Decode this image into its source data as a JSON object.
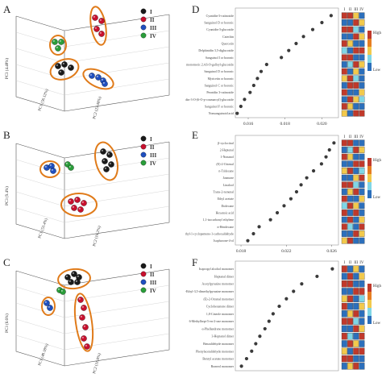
{
  "panels": {
    "A": {
      "letter": "A",
      "axes": {
        "x": "PC1 (56.12%)",
        "y": "PC2 (23.48%)",
        "z": "PC3 (4.48%)"
      },
      "legend": [
        "I",
        "II",
        "III",
        "IV"
      ]
    },
    "B": {
      "letter": "B",
      "axes": {
        "x": "PC1 (53.4%)",
        "y": "PC2 (16.2%)",
        "z": "PC3 (9.4%)"
      },
      "legend": [
        "I",
        "II",
        "III",
        "IV"
      ]
    },
    "C": {
      "letter": "C",
      "axes": {
        "x": "PC1 (48.18%)",
        "y": "PC2 (31.8%)",
        "z": "PC3 (6.6%)"
      },
      "legend": [
        "I",
        "II",
        "III",
        "IV"
      ]
    }
  },
  "group_colors": {
    "I": "#1a1a1a",
    "II": "#c8102e",
    "III": "#1f4fbf",
    "IV": "#2a9d3a"
  },
  "ellipse_color": "#e07b1a",
  "heat_colors": {
    "high": "#c0392b",
    "mid": "#f2c94c",
    "low": "#2c6fbb",
    "cyan": "#7fd6e6"
  },
  "chart_data": [
    {
      "panel": "D",
      "letter": "D",
      "type": "scatter",
      "categories": [
        "Cyanidin-3-rutinoside",
        "Sanguinol D or boronic",
        "Cyanidin-3-glucoside",
        "Catechin",
        "Quercetin",
        "Delphinidin 3,5-diglucoside",
        "Sanguinol I or boronic",
        "Oxidized monomeric 2,4,6-O-galloyl-glucoside",
        "Sanguinol D or boronic",
        "Myricetin or boronic",
        "Sanguinol C or boronic",
        "Peonidin 3-rutinoside",
        "Malvidin-3-O-(6-O-p-coumaroyl)-glucoside",
        "Sanguinol F or boronic",
        "Nonsanguinoid acid"
      ],
      "values": [
        0.0205,
        0.02,
        0.0195,
        0.019,
        0.0186,
        0.0182,
        0.0178,
        0.017,
        0.0167,
        0.0165,
        0.0163,
        0.0161,
        0.0158,
        0.0156,
        0.0154
      ],
      "xticks": [
        "0.016",
        "0.018",
        "0.020"
      ],
      "xlim": [
        0.0153,
        0.0209
      ],
      "legend_cols": [
        "I",
        "II",
        "III",
        "IV"
      ],
      "heatmap": [
        [
          3,
          3,
          2,
          0
        ],
        [
          0,
          0,
          3,
          2
        ],
        [
          3,
          3,
          1,
          0
        ],
        [
          0,
          0,
          3,
          2
        ],
        [
          3,
          2,
          0,
          0
        ],
        [
          1,
          0,
          3,
          3
        ],
        [
          3,
          3,
          0,
          0
        ],
        [
          0,
          1,
          3,
          2
        ],
        [
          3,
          0,
          2,
          0
        ],
        [
          2,
          3,
          1,
          0
        ],
        [
          0,
          3,
          3,
          0
        ],
        [
          3,
          0,
          0,
          2
        ],
        [
          0,
          3,
          2,
          1
        ],
        [
          3,
          2,
          0,
          0
        ],
        [
          2,
          0,
          3,
          3
        ]
      ],
      "scale_labels": {
        "high": "High",
        "low": "Low"
      }
    },
    {
      "panel": "E",
      "letter": "E",
      "type": "scatter",
      "categories": [
        "β-cyclocitral",
        "2-Heptenal",
        "1-Nonanol",
        "(E)-2-Octenal",
        "n-Tridecane",
        "Jasmone",
        "Linalool",
        "Trans-2-nonenal",
        "Ethyl acetate",
        "Dodecane",
        "Hexanoic acid",
        "1,1-isocarbonyl ethylene",
        "n-Hendecane",
        "5-Ethyl-1-cyclopentene-1-carboxaldehyde",
        "Isophorone-4-ol"
      ],
      "values": [
        0.0262,
        0.0258,
        0.0255,
        0.0251,
        0.0244,
        0.0238,
        0.0233,
        0.0229,
        0.0224,
        0.0218,
        0.0212,
        0.0206,
        0.0196,
        0.0191,
        0.0186
      ],
      "xticks": [
        "0.018",
        "0.022",
        "0.026"
      ],
      "xlim": [
        0.0175,
        0.0266
      ],
      "legend_cols": [
        "I",
        "II",
        "III",
        "IV"
      ],
      "heatmap": [
        [
          3,
          3,
          0,
          0
        ],
        [
          0,
          1,
          3,
          2
        ],
        [
          3,
          2,
          0,
          0
        ],
        [
          0,
          0,
          3,
          3
        ],
        [
          2,
          3,
          0,
          1
        ],
        [
          0,
          0,
          2,
          3
        ],
        [
          3,
          3,
          1,
          0
        ],
        [
          0,
          2,
          3,
          0
        ],
        [
          3,
          0,
          0,
          2
        ],
        [
          1,
          3,
          2,
          0
        ],
        [
          3,
          0,
          3,
          0
        ],
        [
          0,
          3,
          0,
          2
        ],
        [
          3,
          1,
          0,
          3
        ],
        [
          0,
          0,
          3,
          2
        ],
        [
          2,
          3,
          0,
          0
        ]
      ],
      "scale_labels": {
        "high": "High",
        "low": "Low"
      }
    },
    {
      "panel": "F",
      "letter": "F",
      "type": "scatter",
      "categories": [
        "Isopropyl alcohol monomer",
        "Heptanal dimer",
        "Acetylpyrazine monomer",
        "2-Ethyl-3,5-dimethylpyrazine monomer",
        "(E)-2-Octenal monomer",
        "Cyclohexanone dimer",
        "1,8-Cineole monomer",
        "6-Methylhept-5-en-2-one monomer",
        "α-Phellandrene monomer",
        "3-Heptanol dimer",
        "Benzaldehyde monomer",
        "Phenylacetaldehyde monomer",
        "Benzyl acetate monomer",
        "Borneol monomer"
      ],
      "values": [
        0.03,
        0.0285,
        0.027,
        0.0262,
        0.0255,
        0.0248,
        0.0242,
        0.0238,
        0.0234,
        0.0229,
        0.0225,
        0.0221,
        0.0216,
        0.0211
      ],
      "xticks": [],
      "xlim": [
        0.0205,
        0.0306
      ],
      "legend_cols": [
        "I",
        "II",
        "III",
        "IV"
      ],
      "heatmap": [
        [
          3,
          0,
          2,
          0
        ],
        [
          0,
          3,
          0,
          2
        ],
        [
          3,
          3,
          0,
          0
        ],
        [
          0,
          0,
          3,
          3
        ],
        [
          2,
          3,
          0,
          1
        ],
        [
          3,
          0,
          0,
          2
        ],
        [
          0,
          2,
          3,
          0
        ],
        [
          3,
          3,
          1,
          0
        ],
        [
          0,
          0,
          3,
          2
        ],
        [
          3,
          1,
          0,
          3
        ],
        [
          0,
          3,
          2,
          0
        ],
        [
          2,
          0,
          3,
          3
        ],
        [
          3,
          3,
          0,
          0
        ],
        [
          0,
          2,
          3,
          0
        ]
      ],
      "scale_labels": {
        "high": "High",
        "low": "Low"
      }
    }
  ]
}
